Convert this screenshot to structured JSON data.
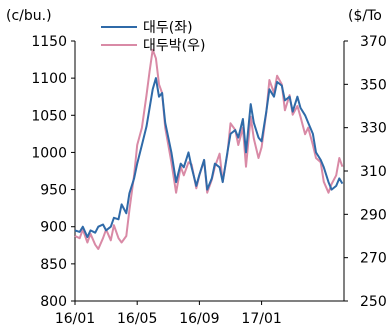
{
  "chart_data": {
    "type": "line",
    "left_axis": {
      "unit": "(c/bu.)",
      "ylim": [
        800,
        1150
      ],
      "ticks": [
        "1150",
        "1100",
        "1050",
        "1000",
        "950",
        "900",
        "850",
        "800"
      ]
    },
    "right_axis": {
      "unit": "($/To",
      "ylim": [
        250,
        370
      ],
      "ticks": [
        "370",
        "350",
        "330",
        "310",
        "290",
        "270",
        "250"
      ]
    },
    "x_ticks": [
      "16/01",
      "16/05",
      "16/09",
      "17/01"
    ],
    "x_tick_positions": [
      0,
      4,
      8,
      12
    ],
    "xlim": [
      0,
      17.3
    ],
    "grid": false,
    "legend_position": "top-left",
    "series": [
      {
        "name": "대두(좌)",
        "axis": "left",
        "color": "#2f6aa8",
        "x": [
          0.0,
          0.3,
          0.5,
          0.8,
          1.0,
          1.3,
          1.5,
          1.8,
          2.0,
          2.3,
          2.5,
          2.8,
          3.0,
          3.3,
          3.5,
          3.8,
          4.0,
          4.3,
          4.6,
          4.8,
          5.0,
          5.2,
          5.4,
          5.6,
          5.8,
          6.0,
          6.2,
          6.5,
          6.8,
          7.0,
          7.3,
          7.5,
          7.8,
          8.0,
          8.3,
          8.5,
          8.8,
          9.0,
          9.3,
          9.5,
          9.8,
          10.0,
          10.3,
          10.5,
          10.8,
          11.0,
          11.3,
          11.5,
          11.8,
          12.0,
          12.3,
          12.5,
          12.8,
          13.0,
          13.3,
          13.5,
          13.8,
          14.0,
          14.3,
          14.5,
          14.8,
          15.0,
          15.3,
          15.5,
          15.8,
          16.0,
          16.3,
          16.5,
          16.8,
          17.0,
          17.2
        ],
        "values": [
          895,
          893,
          900,
          886,
          895,
          892,
          900,
          903,
          895,
          900,
          912,
          910,
          930,
          918,
          945,
          965,
          985,
          1010,
          1035,
          1060,
          1085,
          1100,
          1075,
          1080,
          1040,
          1020,
          1000,
          960,
          985,
          980,
          1000,
          980,
          955,
          970,
          990,
          950,
          965,
          985,
          980,
          960,
          1000,
          1025,
          1030,
          1020,
          1045,
          1000,
          1065,
          1040,
          1020,
          1015,
          1055,
          1085,
          1075,
          1095,
          1090,
          1070,
          1075,
          1055,
          1075,
          1060,
          1050,
          1040,
          1025,
          1000,
          990,
          980,
          960,
          950,
          955,
          965,
          958
        ]
      },
      {
        "name": "대두박(우)",
        "axis": "right",
        "color": "#d98aa6",
        "x": [
          0.0,
          0.3,
          0.5,
          0.8,
          1.0,
          1.3,
          1.5,
          1.8,
          2.0,
          2.3,
          2.5,
          2.8,
          3.0,
          3.3,
          3.5,
          3.8,
          4.0,
          4.3,
          4.6,
          4.8,
          5.0,
          5.2,
          5.4,
          5.6,
          5.8,
          6.0,
          6.2,
          6.5,
          6.8,
          7.0,
          7.3,
          7.5,
          7.8,
          8.0,
          8.3,
          8.5,
          8.8,
          9.0,
          9.3,
          9.5,
          9.8,
          10.0,
          10.3,
          10.5,
          10.8,
          11.0,
          11.3,
          11.5,
          11.8,
          12.0,
          12.3,
          12.5,
          12.8,
          13.0,
          13.3,
          13.5,
          13.8,
          14.0,
          14.3,
          14.5,
          14.8,
          15.0,
          15.3,
          15.5,
          15.8,
          16.0,
          16.3,
          16.5,
          16.8,
          17.0,
          17.2
        ],
        "values": [
          280,
          279,
          283,
          277,
          281,
          276,
          274,
          279,
          283,
          278,
          285,
          279,
          277,
          280,
          292,
          308,
          322,
          330,
          345,
          356,
          366,
          362,
          350,
          346,
          330,
          322,
          314,
          300,
          312,
          308,
          314,
          313,
          302,
          308,
          315,
          300,
          306,
          312,
          318,
          305,
          318,
          332,
          329,
          322,
          330,
          312,
          335,
          325,
          316,
          321,
          337,
          352,
          346,
          354,
          350,
          338,
          345,
          336,
          340,
          335,
          327,
          330,
          322,
          316,
          314,
          305,
          300,
          304,
          308,
          316,
          312
        ]
      }
    ]
  }
}
